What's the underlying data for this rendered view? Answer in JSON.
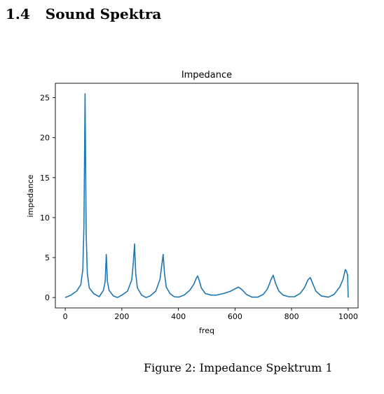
{
  "section": {
    "number": "1.4",
    "title": "Sound Spektra"
  },
  "caption": "Figure 2: Impedance Spektrum 1",
  "chart_data": {
    "type": "line",
    "title": "Impedance",
    "xlabel": "freq",
    "ylabel": "impedance",
    "xlim": [
      -35,
      1035
    ],
    "ylim": [
      -1.3,
      26.8
    ],
    "x_ticks": [
      0,
      200,
      400,
      600,
      800,
      1000
    ],
    "x_tick_labels": [
      "0",
      "200",
      "400",
      "600",
      "800",
      "1000"
    ],
    "y_ticks": [
      0,
      5,
      10,
      15,
      20,
      25
    ],
    "y_tick_labels": [
      "0",
      "5",
      "10",
      "15",
      "20",
      "25"
    ],
    "line_color": "#1f77b4",
    "grid": false,
    "series": [
      {
        "x": [
          0,
          20,
          40,
          55,
          62,
          66,
          70,
          74,
          78,
          85,
          100,
          120,
          135,
          141,
          145,
          149,
          155,
          170,
          185,
          200,
          220,
          235,
          241,
          245,
          249,
          255,
          270,
          285,
          300,
          320,
          335,
          341,
          346,
          351,
          357,
          370,
          385,
          400,
          420,
          440,
          455,
          463,
          468,
          473,
          481,
          495,
          515,
          535,
          560,
          585,
          600,
          612,
          624,
          640,
          660,
          680,
          700,
          715,
          727,
          735,
          743,
          755,
          770,
          790,
          810,
          830,
          845,
          858,
          866,
          874,
          886,
          905,
          930,
          950,
          970,
          982,
          990,
          994,
          998,
          1000
        ],
        "y": [
          0.0,
          0.3,
          0.8,
          1.6,
          3.5,
          9.0,
          25.5,
          8.0,
          3.0,
          1.2,
          0.5,
          0.1,
          0.9,
          2.0,
          5.4,
          2.0,
          0.9,
          0.2,
          0.0,
          0.3,
          0.8,
          2.2,
          4.5,
          6.7,
          3.0,
          1.2,
          0.3,
          0.0,
          0.2,
          0.8,
          2.3,
          4.0,
          5.4,
          3.0,
          1.3,
          0.5,
          0.1,
          0.05,
          0.3,
          0.9,
          1.7,
          2.4,
          2.7,
          2.2,
          1.2,
          0.5,
          0.3,
          0.3,
          0.5,
          0.8,
          1.1,
          1.3,
          1.0,
          0.4,
          0.05,
          0.05,
          0.4,
          1.1,
          2.2,
          2.8,
          1.8,
          0.8,
          0.3,
          0.1,
          0.1,
          0.5,
          1.2,
          2.2,
          2.5,
          1.8,
          0.8,
          0.2,
          0.05,
          0.4,
          1.3,
          2.3,
          3.5,
          3.3,
          2.8,
          0.0
        ]
      }
    ]
  }
}
